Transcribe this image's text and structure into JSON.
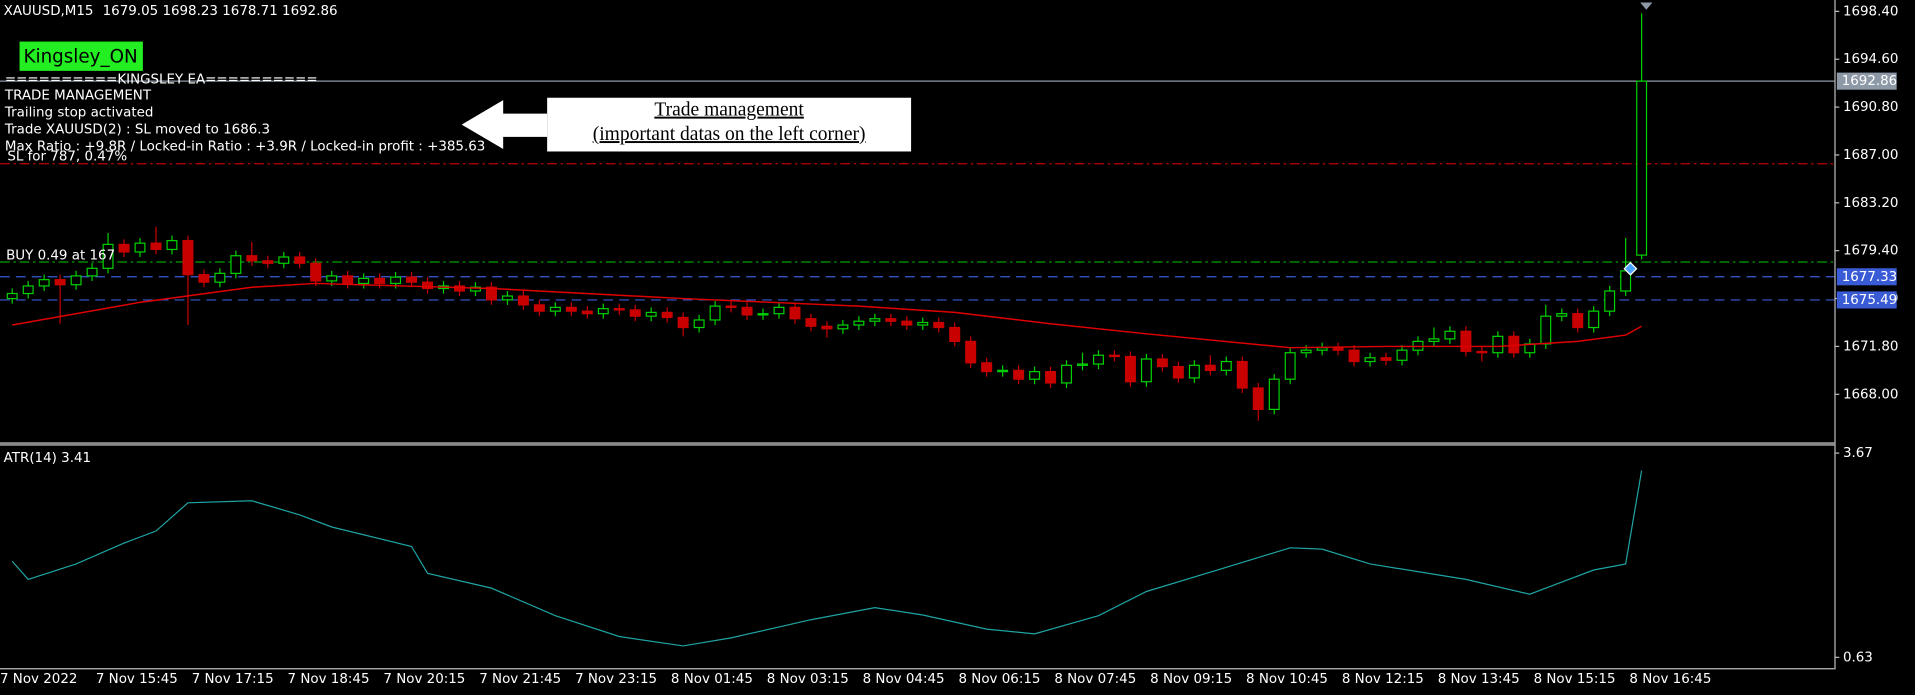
{
  "chart_data": [
    {
      "type": "candlestick",
      "symbol": "XAUUSD,M15",
      "categories": [
        "7 Nov 2022",
        null,
        null,
        null,
        null,
        null,
        "7 Nov 15:45",
        null,
        null,
        null,
        null,
        null,
        "7 Nov 17:15",
        null,
        null,
        null,
        null,
        null,
        "7 Nov 18:45",
        null,
        null,
        null,
        null,
        null,
        "7 Nov 20:15",
        null,
        null,
        null,
        null,
        null,
        "7 Nov 21:45",
        null,
        null,
        null,
        null,
        null,
        "7 Nov 23:15",
        null,
        null,
        null,
        null,
        null,
        "8 Nov 01:45",
        null,
        null,
        null,
        null,
        null,
        "8 Nov 03:15",
        null,
        null,
        null,
        null,
        null,
        "8 Nov 04:45",
        null,
        null,
        null,
        null,
        null,
        "8 Nov 06:15",
        null,
        null,
        null,
        null,
        null,
        "8 Nov 07:45",
        null,
        null,
        null,
        null,
        null,
        "8 Nov 09:15",
        null,
        null,
        null,
        null,
        null,
        "8 Nov 10:45",
        null,
        null,
        null,
        null,
        null,
        "8 Nov 12:15",
        null,
        null,
        null,
        null,
        null,
        "8 Nov 13:45",
        null,
        null,
        null,
        null,
        null,
        "8 Nov 15:15",
        null,
        null,
        null,
        null,
        null,
        "8 Nov 16:45"
      ],
      "open": [
        1675.6,
        1676.0,
        1676.6,
        1677.1,
        1676.7,
        1677.4,
        1678.0,
        1679.9,
        1679.3,
        1680.0,
        1679.5,
        1680.2,
        1677.5,
        1676.9,
        1677.6,
        1679.0,
        1678.6,
        1678.4,
        1678.9,
        1678.4,
        1677.0,
        1677.4,
        1676.8,
        1677.2,
        1676.8,
        1677.3,
        1676.9,
        1676.4,
        1676.6,
        1676.2,
        1676.5,
        1675.5,
        1675.8,
        1675.1,
        1674.6,
        1674.9,
        1674.6,
        1674.4,
        1674.8,
        1674.7,
        1674.2,
        1674.5,
        1674.1,
        1673.3,
        1673.9,
        1675.0,
        1674.9,
        1674.3,
        1674.4,
        1674.9,
        1674.0,
        1673.4,
        1673.2,
        1673.5,
        1673.8,
        1674.0,
        1673.8,
        1673.5,
        1673.7,
        1673.3,
        1672.2,
        1670.5,
        1669.8,
        1669.9,
        1669.2,
        1669.8,
        1668.9,
        1670.3,
        1670.4,
        1671.1,
        1671.0,
        1669.0,
        1670.8,
        1670.2,
        1669.3,
        1670.3,
        1669.9,
        1670.6,
        1668.5,
        1666.8,
        1669.2,
        1671.3,
        1671.5,
        1671.7,
        1671.5,
        1670.6,
        1670.9,
        1670.7,
        1671.5,
        1672.2,
        1672.4,
        1673.0,
        1671.4,
        1671.3,
        1672.6,
        1671.3,
        1672.0,
        1674.2,
        1674.4,
        1673.3,
        1674.6,
        1676.2,
        1679.05
      ],
      "high": [
        1676.4,
        1677.0,
        1677.5,
        1677.5,
        1677.8,
        1678.4,
        1680.8,
        1680.3,
        1680.4,
        1681.3,
        1680.6,
        1680.6,
        1677.9,
        1678.0,
        1679.4,
        1680.1,
        1679.0,
        1679.3,
        1679.3,
        1678.8,
        1677.8,
        1677.8,
        1677.6,
        1677.6,
        1677.7,
        1677.7,
        1677.3,
        1677.0,
        1677.0,
        1676.9,
        1676.9,
        1676.2,
        1676.2,
        1675.5,
        1675.3,
        1675.3,
        1675.0,
        1675.2,
        1675.2,
        1675.1,
        1674.9,
        1674.9,
        1674.5,
        1674.3,
        1675.4,
        1675.4,
        1675.3,
        1674.8,
        1675.3,
        1675.3,
        1674.4,
        1673.8,
        1673.9,
        1674.2,
        1674.4,
        1674.4,
        1674.2,
        1674.1,
        1674.1,
        1673.7,
        1672.6,
        1670.9,
        1670.3,
        1670.3,
        1670.2,
        1670.2,
        1670.7,
        1671.3,
        1671.5,
        1671.5,
        1671.4,
        1671.2,
        1671.2,
        1670.6,
        1670.7,
        1671.1,
        1671.0,
        1671.0,
        1668.9,
        1669.6,
        1671.7,
        1671.9,
        1672.1,
        1672.1,
        1671.9,
        1671.3,
        1671.3,
        1671.9,
        1672.6,
        1673.3,
        1673.4,
        1673.4,
        1671.8,
        1673.0,
        1673.0,
        1672.4,
        1675.1,
        1674.8,
        1674.8,
        1675.0,
        1676.6,
        1680.4,
        1698.23
      ],
      "low": [
        1675.2,
        1675.6,
        1676.2,
        1673.6,
        1676.3,
        1677.0,
        1677.6,
        1678.9,
        1678.9,
        1679.1,
        1679.1,
        1673.5,
        1676.5,
        1676.5,
        1677.2,
        1678.2,
        1678.0,
        1678.0,
        1678.0,
        1676.6,
        1676.6,
        1676.4,
        1676.4,
        1676.4,
        1676.4,
        1676.5,
        1676.0,
        1676.0,
        1675.8,
        1675.8,
        1675.1,
        1675.1,
        1674.7,
        1674.2,
        1674.2,
        1674.2,
        1674.0,
        1674.0,
        1674.3,
        1673.8,
        1673.8,
        1673.7,
        1672.6,
        1672.9,
        1673.5,
        1674.5,
        1673.9,
        1673.9,
        1674.0,
        1673.6,
        1673.0,
        1672.5,
        1672.8,
        1673.1,
        1673.4,
        1673.4,
        1673.1,
        1673.1,
        1672.9,
        1671.8,
        1670.1,
        1669.4,
        1669.4,
        1668.8,
        1668.8,
        1668.5,
        1668.5,
        1669.9,
        1670.0,
        1670.6,
        1668.6,
        1668.6,
        1669.8,
        1668.9,
        1668.9,
        1669.5,
        1669.5,
        1668.1,
        1665.9,
        1666.4,
        1668.8,
        1670.9,
        1671.1,
        1671.1,
        1670.2,
        1670.2,
        1670.3,
        1670.3,
        1671.1,
        1671.8,
        1672.0,
        1671.0,
        1670.6,
        1670.9,
        1670.9,
        1670.9,
        1671.6,
        1673.8,
        1672.9,
        1672.9,
        1674.2,
        1675.8,
        1678.71
      ],
      "close": [
        1676.0,
        1676.6,
        1677.1,
        1676.7,
        1677.4,
        1678.0,
        1679.9,
        1679.3,
        1680.0,
        1679.5,
        1680.2,
        1677.5,
        1676.9,
        1677.6,
        1679.0,
        1678.6,
        1678.4,
        1678.9,
        1678.4,
        1677.0,
        1677.4,
        1676.8,
        1677.2,
        1676.8,
        1677.3,
        1676.9,
        1676.4,
        1676.6,
        1676.2,
        1676.5,
        1675.5,
        1675.8,
        1675.1,
        1674.6,
        1674.9,
        1674.6,
        1674.4,
        1674.8,
        1674.7,
        1674.2,
        1674.5,
        1674.1,
        1673.3,
        1673.9,
        1675.0,
        1674.9,
        1674.3,
        1674.4,
        1674.9,
        1674.0,
        1673.4,
        1673.2,
        1673.5,
        1673.8,
        1674.0,
        1673.8,
        1673.5,
        1673.7,
        1673.3,
        1672.2,
        1670.5,
        1669.8,
        1669.9,
        1669.2,
        1669.8,
        1668.9,
        1670.3,
        1670.4,
        1671.1,
        1671.0,
        1669.0,
        1670.8,
        1670.2,
        1669.3,
        1670.3,
        1669.9,
        1670.6,
        1668.5,
        1666.8,
        1669.2,
        1671.3,
        1671.5,
        1671.7,
        1671.5,
        1670.6,
        1670.9,
        1670.7,
        1671.5,
        1672.2,
        1672.4,
        1673.0,
        1671.4,
        1671.3,
        1672.6,
        1671.3,
        1672.0,
        1674.2,
        1674.4,
        1673.3,
        1674.6,
        1676.2,
        1677.8,
        1692.86
      ],
      "up_color": "#00d000",
      "down_color": "#c80000",
      "ma": {
        "color": "#e00000",
        "x": [
          0,
          8,
          15,
          19,
          30,
          42,
          53,
          59,
          65,
          71,
          80,
          86,
          93,
          98,
          101,
          102
        ],
        "values": [
          1673.5,
          1675.3,
          1676.5,
          1676.8,
          1676.4,
          1675.6,
          1675.0,
          1674.5,
          1673.6,
          1672.8,
          1671.7,
          1671.8,
          1671.8,
          1672.2,
          1672.7,
          1673.4
        ]
      },
      "ylim": [
        1664.2,
        1699.3
      ],
      "yticks": [
        {
          "value": 1698.4,
          "label": "1698.40"
        },
        {
          "value": 1694.6,
          "label": "1694.60"
        },
        {
          "value": 1690.8,
          "label": "1690.80"
        },
        {
          "value": 1687,
          "label": "1687.00"
        },
        {
          "value": 1683.2,
          "label": "1683.20"
        },
        {
          "value": 1679.4,
          "label": "1679.40"
        },
        {
          "value": 1675.6,
          "label": "1675.60"
        },
        {
          "value": 1671.8,
          "label": "1671.80"
        },
        {
          "value": 1668,
          "label": "1668.00"
        }
      ],
      "levels": [
        {
          "value": 1686.3,
          "color": "#c00000",
          "style": "dashdot"
        },
        {
          "value": 1678.5,
          "color": "#00a000",
          "style": "dashdot"
        }
      ],
      "tagged_levels": [
        {
          "value": 1692.86,
          "color": "#8e99a8",
          "style": "solid"
        },
        {
          "value": 1677.33,
          "color": "#3a5bd6",
          "style": "dashed"
        },
        {
          "value": 1675.49,
          "color": "#3a5bd6",
          "style": "dashed"
        }
      ],
      "ea_button": "Kingsley_ON",
      "ea_header": "==========KINGSLEY EA==========",
      "panel_lines": [
        "TRADE MANAGEMENT",
        "Trailing stop activated",
        "Trade XAUUSD(2) : SL moved to 1686.3",
        "Max Ratio : +9.8R / Locked-in Ratio : +3.9R / Locked-in profit : +385.63"
      ],
      "sl_label": "SL for 787, 0.47%",
      "buy_label": "BUY 0.49 at 167",
      "callout": [
        "Trade management",
        "(important datas on the left corner)"
      ]
    },
    {
      "type": "line",
      "title": "ATR(14)",
      "color": "#1fa3a3",
      "x": [
        0,
        1,
        4,
        7,
        9,
        11,
        15,
        18,
        20,
        25,
        26,
        30,
        34,
        38,
        42,
        45,
        50,
        54,
        57,
        61,
        64,
        68,
        71,
        76,
        80,
        82,
        85,
        91,
        95,
        97,
        99,
        101,
        102
      ],
      "values": [
        2.06,
        1.79,
        2.02,
        2.33,
        2.51,
        2.93,
        2.96,
        2.75,
        2.57,
        2.28,
        1.88,
        1.66,
        1.25,
        0.94,
        0.8,
        0.92,
        1.19,
        1.37,
        1.26,
        1.05,
        0.98,
        1.25,
        1.61,
        1.97,
        2.26,
        2.24,
        2.02,
        1.79,
        1.57,
        1.75,
        1.93,
        2.02,
        3.41
      ],
      "ylim": [
        0.47,
        3.76
      ],
      "yticks": [
        3.67,
        0.63
      ]
    }
  ]
}
